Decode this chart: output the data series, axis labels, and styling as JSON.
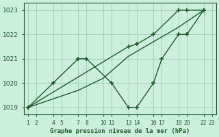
{
  "title": "Graphe pression niveau de la mer (hPa)",
  "bg_color": "#cceedd",
  "grid_color": "#aaccbb",
  "line_color": "#1a5c2a",
  "ylim": [
    1018.7,
    1023.3
  ],
  "yticks": [
    1019,
    1020,
    1021,
    1022,
    1023
  ],
  "xlim": [
    0.5,
    23.5
  ],
  "xtick_positions": [
    1,
    2,
    4,
    5,
    7,
    8,
    10,
    11,
    13,
    14,
    16,
    17,
    19,
    20,
    22,
    23
  ],
  "xtick_labels": [
    "1",
    "2",
    "4",
    "5",
    "7",
    "8",
    "10",
    "11",
    "13",
    "14",
    "16",
    "17",
    "19",
    "20",
    "22",
    "23"
  ],
  "lineA_x": [
    1,
    4,
    7,
    8,
    11,
    13,
    14,
    16,
    17,
    19,
    20,
    22
  ],
  "lineA_y": [
    1019,
    1020,
    1021,
    1021,
    1020,
    1019,
    1019,
    1020,
    1021,
    1022,
    1022,
    1023
  ],
  "lineB_x": [
    1,
    13,
    14,
    16,
    19,
    20,
    22
  ],
  "lineB_y": [
    1019,
    1021.5,
    1021.6,
    1022.0,
    1023.0,
    1023.0,
    1023.0
  ],
  "lineC_x": [
    1,
    7,
    10,
    13,
    16,
    19,
    22
  ],
  "lineC_y": [
    1019,
    1019.7,
    1020.2,
    1021.1,
    1021.7,
    1022.3,
    1023.0
  ]
}
